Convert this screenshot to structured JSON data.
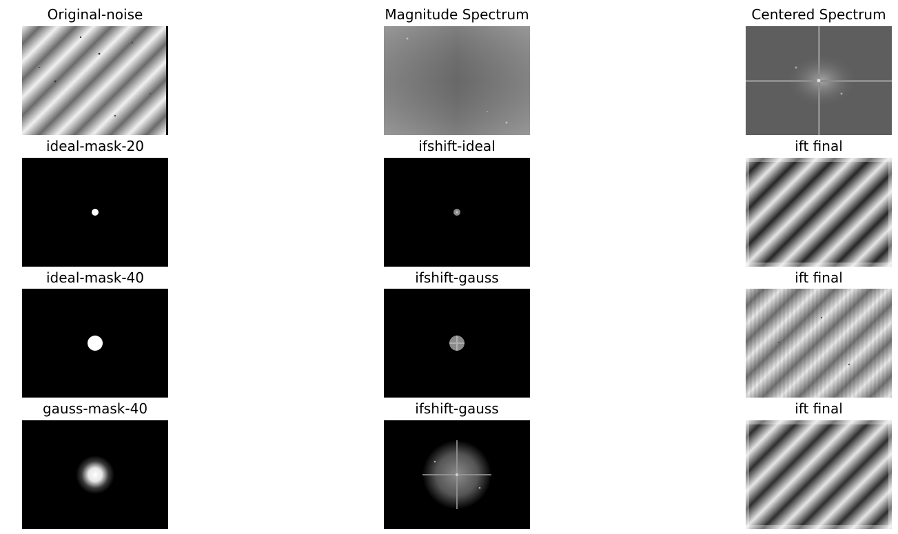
{
  "panels": [
    {
      "title": "Original-noise",
      "kind": "stripes-noisy"
    },
    {
      "title": "Magnitude Spectrum",
      "kind": "magnitude"
    },
    {
      "title": "Centered Spectrum",
      "kind": "centered"
    },
    {
      "title": "ideal-mask-20",
      "kind": "ideal-mask-small"
    },
    {
      "title": "ifshift-ideal",
      "kind": "ideal-shift-small"
    },
    {
      "title": "ift final",
      "kind": "stripes-smooth"
    },
    {
      "title": "ideal-mask-40",
      "kind": "ideal-mask-large"
    },
    {
      "title": "ifshift-gauss",
      "kind": "ideal-shift-large"
    },
    {
      "title": "ift final",
      "kind": "stripes-ringing"
    },
    {
      "title": "gauss-mask-40",
      "kind": "gauss-mask"
    },
    {
      "title": "ifshift-gauss",
      "kind": "gauss-shift"
    },
    {
      "title": "ift final",
      "kind": "stripes-smooth"
    }
  ]
}
